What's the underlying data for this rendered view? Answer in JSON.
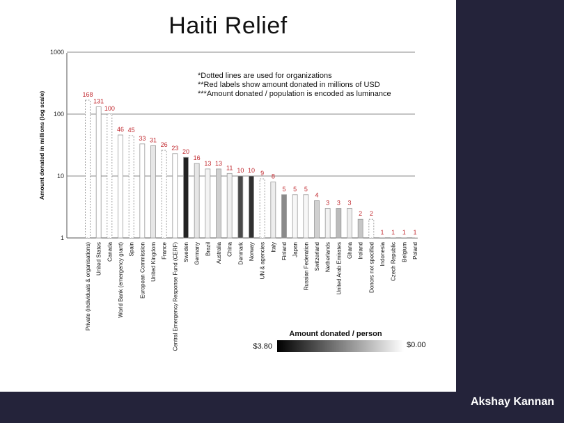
{
  "slide": {
    "title": "Haiti Relief",
    "author": "Akshay Kannan",
    "colors": {
      "band": "#24233a",
      "label_red": "#c0272d"
    }
  },
  "chart_data": {
    "type": "bar",
    "ylabel": "Amount donated in millions (log scale)",
    "yscale": "log",
    "ylim": [
      1,
      1000
    ],
    "yticks": [
      "1",
      "10",
      "100",
      "1000"
    ],
    "grid": true,
    "notes": [
      "*Dotted lines are used for organizations",
      "**Red labels show amount donated in millions of USD",
      "***Amount donated / population is encoded as luminance"
    ],
    "legend": {
      "title": "Amount donated / person",
      "min_label": "$3.80",
      "max_label": "$0.00"
    },
    "categories": [
      "Private (individuals & organisations)",
      "United States",
      "Canada",
      "World Bank (emergency grant)",
      "Spain",
      "European Commission",
      "United Kingdom",
      "France",
      "Central Emergency Response Fund (CERF)",
      "Sweden",
      "Germany",
      "Brazil",
      "Australia",
      "China",
      "Denmark",
      "Norway",
      "UN & agencies",
      "Italy",
      "Finland",
      "Japan",
      "Russian Federation",
      "Switzerland",
      "Netherlands",
      "United Arab Emirates",
      "Ghana",
      "Ireland",
      "Donors not specified",
      "Indonesia",
      "Czech Republic",
      "Belgium",
      "Poland"
    ],
    "values": [
      168,
      131,
      100,
      46,
      45,
      33,
      31,
      26,
      23,
      20,
      16,
      13,
      13,
      11,
      10,
      10,
      9,
      8,
      5,
      5,
      5,
      4,
      3,
      3,
      3,
      2,
      2,
      1,
      1,
      1,
      1
    ],
    "value_labels": [
      "168",
      "131",
      "100",
      "46",
      "45",
      "33",
      "31",
      "26",
      "23",
      "20",
      "16",
      "13",
      "13",
      "11",
      "10",
      "10",
      "9",
      "8",
      "5",
      "5",
      "5",
      "4",
      "3",
      "3",
      "3",
      "2",
      "2",
      "1",
      "1",
      "1",
      "1"
    ],
    "organization": [
      true,
      false,
      true,
      false,
      true,
      false,
      false,
      true,
      false,
      false,
      false,
      false,
      false,
      false,
      false,
      false,
      true,
      false,
      false,
      false,
      false,
      false,
      false,
      false,
      false,
      false,
      true,
      false,
      false,
      false,
      false
    ],
    "bar_colors": [
      "#c4c4c4",
      "#ffffff",
      "#0a0a0a",
      "#ffffff",
      "#9a9a9a",
      "#ffffff",
      "#e6e6e6",
      "#e2e2e2",
      "#ffffff",
      "#222222",
      "#e6e6e6",
      "#f3f3f3",
      "#cfcfcf",
      "#f0f0f0",
      "#4a4a4a",
      "#303030",
      "#ffffff",
      "#ededed",
      "#8a8a8a",
      "#f7f7f7",
      "#f7f7f7",
      "#d0d0d0",
      "#f2f2f2",
      "#bbbbbb",
      "#eeeeee",
      "#c6c6c6",
      "#ffffff",
      "#f4f4f4",
      "#e4e4e4",
      "#dddddd",
      "#f7f7f7"
    ]
  }
}
